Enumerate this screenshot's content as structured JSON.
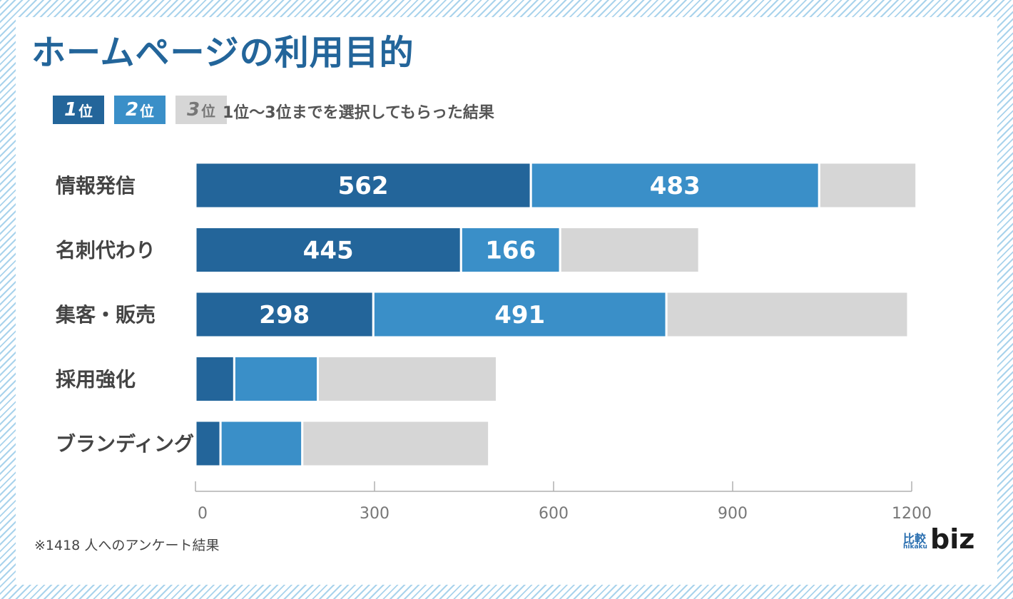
{
  "title": "ホームページの利用目的",
  "legend": {
    "items": [
      {
        "num": "1",
        "suffix": "位",
        "color": "#23659a",
        "text_color": "#ffffff"
      },
      {
        "num": "2",
        "suffix": "位",
        "color": "#3a8fc8",
        "text_color": "#ffffff"
      },
      {
        "num": "3",
        "suffix": "位",
        "color": "#d6d6d6",
        "text_color": "#777777"
      }
    ],
    "note": "1位〜3位までを選択してもらった結果"
  },
  "footnote": "※1418 人へのアンケート結果",
  "logo": {
    "kanji": "比較",
    "roma": "hikaku",
    "biz": "biz"
  },
  "colors": {
    "rank1": "#23659a",
    "rank2": "#3a8fc8",
    "rank3": "#d6d6d6",
    "axis": "#b0b0b0",
    "tick_label": "#777777",
    "category_label": "#444444"
  },
  "chart_data": {
    "type": "bar",
    "orientation": "horizontal",
    "stacked": true,
    "categories": [
      "情報発信",
      "名刺代わり",
      "集客・販売",
      "採用強化",
      "ブランディング"
    ],
    "series": [
      {
        "name": "1位",
        "values": [
          562,
          445,
          298,
          65,
          42
        ]
      },
      {
        "name": "2位",
        "values": [
          483,
          166,
          491,
          140,
          137
        ]
      },
      {
        "name": "3位",
        "values": [
          163,
          233,
          405,
          300,
          313
        ]
      }
    ],
    "data_labels": [
      [
        "562",
        "483",
        ""
      ],
      [
        "445",
        "166",
        ""
      ],
      [
        "298",
        "491",
        ""
      ],
      [
        "",
        "",
        ""
      ],
      [
        "",
        "",
        ""
      ]
    ],
    "xlim": [
      0,
      1200
    ],
    "xticks": [
      0,
      300,
      600,
      900,
      1200
    ],
    "xtick_labels": [
      "0",
      "300",
      "600",
      "900",
      "1200"
    ],
    "grid": false,
    "legend": "top-left"
  }
}
